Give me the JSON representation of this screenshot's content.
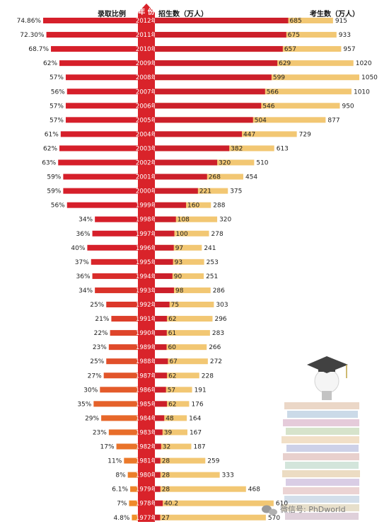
{
  "chart_data": {
    "type": "bar",
    "headers": {
      "rate": "录取比例",
      "year": "年 份",
      "admitted": "招生数（万人）",
      "applicants": "考生数（万人）"
    },
    "categories": [
      "2012年",
      "2011年",
      "2010年",
      "2009年",
      "2008年",
      "2007年",
      "2006年",
      "2005年",
      "2004年",
      "2003年",
      "2002年",
      "2001年",
      "2000年",
      "1999年",
      "1998年",
      "1997年",
      "1996年",
      "1995年",
      "1994年",
      "1993年",
      "1992年",
      "1991年",
      "1990年",
      "1989年",
      "1988年",
      "1987年",
      "1986年",
      "1985年",
      "1984年",
      "1983年",
      "1982年",
      "1981年",
      "1980年",
      "1979年",
      "1978年",
      "1977年"
    ],
    "series": [
      {
        "name": "录取比例",
        "values": [
          74.86,
          72.3,
          68.7,
          62,
          57,
          56,
          57,
          57,
          61,
          62,
          63,
          59,
          59,
          56,
          34,
          36,
          40,
          37,
          36,
          34,
          25,
          21,
          22,
          23,
          25,
          27,
          30,
          35,
          29,
          23,
          17,
          11,
          8,
          6.1,
          7,
          4.8
        ],
        "labels": [
          "74.86%",
          "72.30%",
          "68.7%",
          "62%",
          "57%",
          "56%",
          "57%",
          "57%",
          "61%",
          "62%",
          "63%",
          "59%",
          "59%",
          "56%",
          "34%",
          "36%",
          "40%",
          "37%",
          "36%",
          "34%",
          "25%",
          "21%",
          "22%",
          "23%",
          "25%",
          "27%",
          "30%",
          "35%",
          "29%",
          "23%",
          "17%",
          "11%",
          "8%",
          "6.1%",
          "7%",
          "4.8%"
        ]
      },
      {
        "name": "招生数（万人）",
        "values": [
          685,
          675,
          657,
          629,
          599,
          566,
          546,
          504,
          447,
          382,
          320,
          268,
          221,
          160,
          108,
          100,
          97,
          93,
          90,
          98,
          75,
          62,
          61,
          60,
          67,
          62,
          57,
          62,
          48,
          39,
          32,
          28,
          28,
          28,
          40.2,
          27
        ]
      },
      {
        "name": "考生数（万人）",
        "values": [
          915,
          933,
          957,
          1020,
          1050,
          1010,
          950,
          877,
          729,
          613,
          510,
          454,
          375,
          288,
          320,
          278,
          241,
          253,
          251,
          286,
          303,
          296,
          283,
          266,
          272,
          228,
          191,
          176,
          164,
          167,
          187,
          259,
          333,
          468,
          610,
          570
        ]
      }
    ],
    "colors": {
      "rate_top": "#d61f2a",
      "rate_bottom": "#f0902a",
      "admitted": "#cc1f2a",
      "applicants": "#f2c773",
      "year_column": "#d9232a"
    }
  },
  "watermark": {
    "text": "微信号: PhDworld",
    "icon": "chat-bubble-icon"
  },
  "illustration": {
    "icon": "graduation-books-icon"
  }
}
